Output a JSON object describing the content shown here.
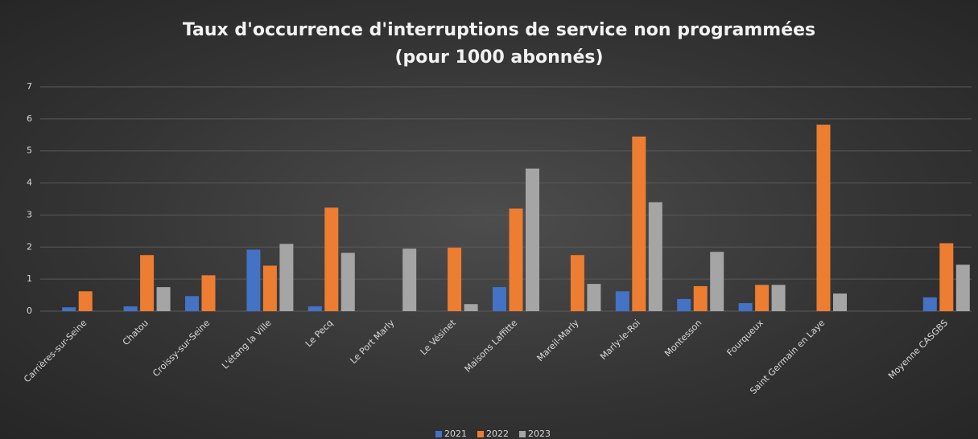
{
  "chart_data": {
    "type": "bar",
    "title": [
      "Taux d'occurrence d'interruptions de service non programmées",
      "(pour 1000 abonnés)"
    ],
    "categories": [
      "Carrières-sur-Seine",
      "Chatou",
      "Croissy-sur-Seine",
      "L'étang la Ville",
      "Le Pecq",
      "Le Port Marly",
      "Le Vésinet",
      "Maisons Laffitte",
      "Mareil-Marly",
      "Marly-le-Roi",
      "Montesson",
      "Fourqueux",
      "Saint Germain en Laye",
      null,
      "Moyenne CASGBS"
    ],
    "series": [
      {
        "name": "2021",
        "color": "#4472c4",
        "values": [
          0.12,
          0.15,
          0.47,
          1.92,
          0.15,
          null,
          null,
          0.75,
          null,
          0.62,
          0.38,
          0.25,
          null,
          null,
          0.43
        ]
      },
      {
        "name": "2022",
        "color": "#ed7d31",
        "values": [
          0.62,
          1.75,
          1.12,
          1.42,
          3.23,
          null,
          1.98,
          3.2,
          1.75,
          5.45,
          0.78,
          0.82,
          5.82,
          null,
          2.12
        ]
      },
      {
        "name": "2023",
        "color": "#a5a5a5",
        "values": [
          null,
          0.75,
          null,
          2.1,
          1.82,
          1.95,
          0.22,
          4.45,
          0.85,
          3.4,
          1.85,
          0.82,
          0.55,
          null,
          1.45
        ]
      }
    ],
    "ylim": [
      0,
      7
    ],
    "yticks": [
      0,
      1,
      2,
      3,
      4,
      5,
      6,
      7
    ],
    "grid": true,
    "legend": "bottom"
  }
}
